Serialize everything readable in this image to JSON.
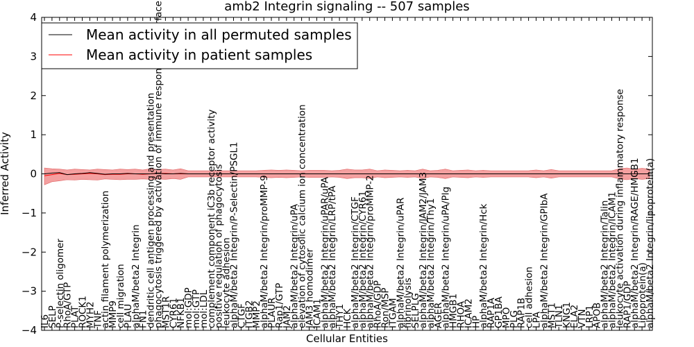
{
  "chart_data": {
    "type": "line",
    "title": "amb2 Integrin signaling -- 507 samples",
    "xlabel": "Cellular Entities",
    "ylabel": "Inferred Activity",
    "ylim": [
      -4,
      4
    ],
    "yticks": [
      4,
      3,
      2,
      1,
      0,
      -1,
      -2,
      -3,
      -4
    ],
    "ytick_labels": [
      "4",
      "3",
      "2",
      "1",
      "0",
      "−1",
      "−2",
      "−3",
      "−4"
    ],
    "legend_position": "top-left",
    "grid": false,
    "categories": [
      "IL6",
      "SELP",
      "P-selectin oligomer",
      "RhoA/GTP",
      "PLAT",
      "ROCK1",
      "MYH2",
      "TNF",
      "actin filament polymerization",
      "MMP9",
      "cell migration",
      "PLAU",
      "alphaM/beta2 Integrin",
      "FN1",
      "dendritic cell antigen processing and presentation",
      "phagocytosis triggered by activation of immune response cell surface activating receptor",
      "MST1R",
      "CYR61",
      "NFKB1",
      "mol:GDP",
      "mol:GTP",
      "mol:LDL",
      "complement component iC3b receptor activity",
      "positive regulation of phagocytosis",
      "leukocyte adhesion",
      "alphaM/beta2 Integrin/P-Selectin/PSGL1",
      "CTGF",
      "ITGB2",
      "MMP2",
      "alphaM/beta2 Integrin/proMMP-9",
      "PLAUR",
      "Rap1/GTP",
      "JAM2",
      "alphaM/beta2 Integrin/uPA",
      "elevation of cytosolic calcium ion concentration",
      "JAM3 homodimer",
      "ICAM1",
      "alphaM/beta2 Integrin/uPAR/uPA",
      "alphaM/beta2 Integrin/LRP/tPA",
      "THY1",
      "HCK",
      "alphaM/beta2 Integrin/CTGF",
      "alphaM/beta2 Integrin/CYR61",
      "alphaM/beta2 Integrin/proMMP-2",
      "RhoA/GDP",
      "Ron/MSP",
      "ITGAM",
      "alphaM/beta2 Integrin/uPAR",
      "fibrinolysis",
      "SELPLG",
      "alphaM/beta2 Integrin/JAM2/JAM3",
      "alphaM/beta2 Integrin/Thy1",
      "AGER",
      "alphaM/beta2 Integrin/uPA/Plg",
      "HMGB1",
      "RHOA",
      "ICAM2",
      "HP",
      "alphaM/beta2 Integrin/Hck",
      "RAP1A",
      "GP1BA",
      "MPO",
      "PLG",
      "RAP1B",
      "cell adhesion",
      "LPA",
      "alphaM/beta2 Integrin/GPIbA",
      "MST1",
      "TLN1",
      "KNG1",
      "ELA2",
      "VTN",
      "LRP1",
      "APOB",
      "alphaM/beta2 Integrin/Talin",
      "alphaM/beta2 Integrin/ICAM1",
      "leukocyte activation during inflammatory response",
      "RAP1/GDP",
      "alphaM/beta2 Integrin/RAGE/HMGB1",
      "Lipoprotein(a)",
      "alphaM/beta2 Integrin/lipoprotein(a)"
    ],
    "series": [
      {
        "name": "Mean activity in all permuted samples",
        "color": "#000000",
        "values": [
          0.0,
          0.02,
          0.03,
          -0.02,
          0.0,
          0.01,
          0.03,
          0.01,
          -0.01,
          0.0,
          0.0,
          0.01,
          0.0,
          0.0,
          0.0,
          0.01,
          0.0,
          0.0,
          0.01,
          0.0,
          0.0,
          0.0,
          0.0,
          0.0,
          0.0,
          0.0,
          0.0,
          0.0,
          0.0,
          0.0,
          0.0,
          0.0,
          0.0,
          0.0,
          0.0,
          0.0,
          0.0,
          0.0,
          0.0,
          0.0,
          0.0,
          0.0,
          0.0,
          0.0,
          0.0,
          0.0,
          0.0,
          0.0,
          0.0,
          0.0,
          0.0,
          0.0,
          0.0,
          0.0,
          0.0,
          0.0,
          0.0,
          0.0,
          0.0,
          0.0,
          0.0,
          0.0,
          0.0,
          0.0,
          0.0,
          0.0,
          0.0,
          0.0,
          0.0,
          0.0,
          0.0,
          0.0,
          0.0,
          0.0,
          0.0,
          0.0,
          0.0,
          0.0,
          0.0,
          0.0,
          0.0
        ]
      },
      {
        "name": "Mean activity in patient samples",
        "color": "#ff0000",
        "band_color": "#f08080",
        "values": [
          -0.05,
          -0.02,
          0.01,
          -0.02,
          -0.01,
          0.0,
          0.01,
          0.0,
          -0.02,
          -0.01,
          -0.01,
          0.0,
          0.0,
          -0.01,
          0.0,
          0.01,
          0.01,
          0.0,
          0.0,
          0.0,
          0.0,
          0.0,
          0.0,
          0.0,
          0.0,
          0.0,
          0.0,
          0.0,
          0.0,
          0.0,
          0.0,
          0.0,
          0.0,
          0.0,
          0.0,
          0.0,
          0.0,
          0.0,
          0.0,
          0.0,
          0.0,
          0.0,
          0.0,
          0.0,
          0.0,
          0.0,
          0.0,
          0.0,
          0.0,
          0.0,
          0.0,
          0.0,
          0.0,
          0.0,
          0.0,
          0.0,
          0.0,
          0.0,
          0.0,
          0.0,
          0.0,
          0.0,
          0.0,
          0.0,
          0.0,
          0.0,
          0.0,
          0.0,
          0.0,
          0.0,
          0.0,
          0.0,
          0.0,
          0.0,
          0.0,
          0.0,
          0.0,
          0.0,
          0.0,
          0.0,
          0.0
        ],
        "band_upper": [
          0.15,
          0.13,
          0.12,
          0.1,
          0.12,
          0.11,
          0.1,
          0.12,
          0.11,
          0.1,
          0.12,
          0.11,
          0.12,
          0.1,
          0.13,
          0.11,
          0.12,
          0.1,
          0.13,
          0.08,
          0.08,
          0.08,
          0.08,
          0.08,
          0.08,
          0.08,
          0.08,
          0.08,
          0.08,
          0.09,
          0.1,
          0.09,
          0.1,
          0.09,
          0.08,
          0.09,
          0.09,
          0.09,
          0.08,
          0.09,
          0.12,
          0.1,
          0.1,
          0.12,
          0.08,
          0.1,
          0.09,
          0.08,
          0.09,
          0.08,
          0.12,
          0.08,
          0.09,
          0.12,
          0.08,
          0.09,
          0.1,
          0.08,
          0.09,
          0.08,
          0.08,
          0.08,
          0.08,
          0.08,
          0.08,
          0.1,
          0.08,
          0.11,
          0.08,
          0.08,
          0.08,
          0.08,
          0.08,
          0.08,
          0.08,
          0.08,
          0.13,
          0.15,
          0.12,
          0.14,
          0.12
        ],
        "band_lower": [
          -0.28,
          -0.2,
          -0.18,
          -0.15,
          -0.16,
          -0.14,
          -0.15,
          -0.16,
          -0.13,
          -0.14,
          -0.15,
          -0.14,
          -0.14,
          -0.13,
          -0.14,
          -0.13,
          -0.14,
          -0.12,
          -0.14,
          -0.08,
          -0.08,
          -0.08,
          -0.08,
          -0.08,
          -0.08,
          -0.08,
          -0.08,
          -0.08,
          -0.08,
          -0.09,
          -0.1,
          -0.09,
          -0.1,
          -0.09,
          -0.08,
          -0.09,
          -0.09,
          -0.09,
          -0.08,
          -0.09,
          -0.12,
          -0.1,
          -0.1,
          -0.12,
          -0.08,
          -0.1,
          -0.09,
          -0.08,
          -0.09,
          -0.08,
          -0.12,
          -0.08,
          -0.09,
          -0.12,
          -0.08,
          -0.09,
          -0.1,
          -0.08,
          -0.09,
          -0.08,
          -0.08,
          -0.08,
          -0.08,
          -0.08,
          -0.08,
          -0.1,
          -0.08,
          -0.11,
          -0.08,
          -0.08,
          -0.08,
          -0.08,
          -0.08,
          -0.08,
          -0.08,
          -0.08,
          -0.13,
          -0.15,
          -0.12,
          -0.14,
          -0.12
        ]
      }
    ]
  }
}
